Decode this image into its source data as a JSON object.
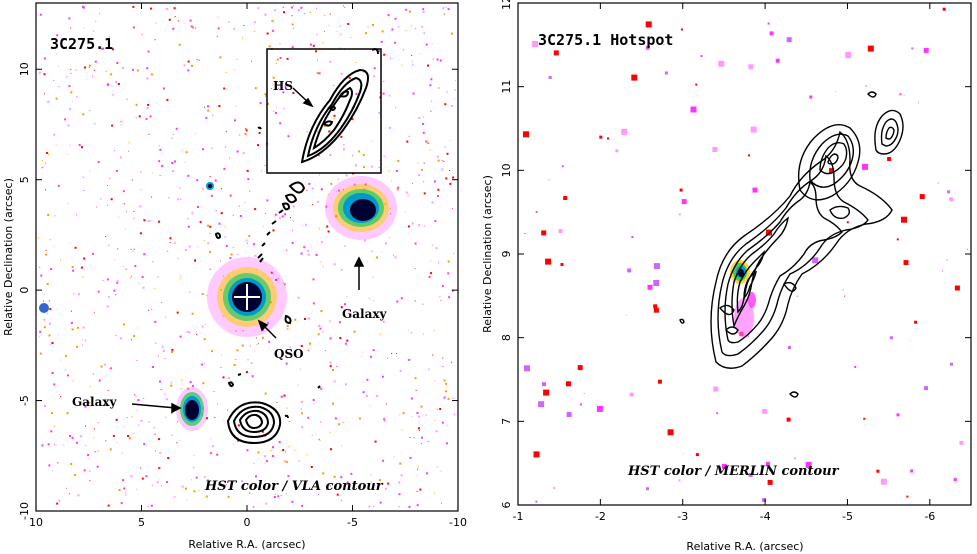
{
  "figure": {
    "left_panel": {
      "title": "3C275.1",
      "overlay_label": "HST color / VLA contour",
      "xlabel": "Relative R.A. (arcsec)",
      "ylabel": "Relative Declination (arcsec)",
      "xlim": [
        10,
        -10
      ],
      "ylim": [
        -10,
        13
      ],
      "x_ticks": [
        "10",
        "5",
        "0",
        "-5",
        "-10"
      ],
      "y_ticks": [
        "-10",
        "-5",
        "0",
        "5",
        "10"
      ],
      "annotations": {
        "hotspot": "HS",
        "galaxy_right": "Galaxy",
        "galaxy_left": "Galaxy",
        "qso": "QSO"
      }
    },
    "right_panel": {
      "title": "3C275.1 Hotspot",
      "overlay_label": "HST color / MERLIN contour",
      "xlabel": "Relative R.A. (arcsec)",
      "ylabel": "Relative Declination (arcsec)",
      "xlim": [
        -1,
        -6.5
      ],
      "ylim": [
        6,
        12
      ],
      "x_ticks": [
        "-1",
        "-2",
        "-3",
        "-4",
        "-5",
        "-6"
      ],
      "y_ticks": [
        "6",
        "7",
        "8",
        "9",
        "10",
        "11",
        "12"
      ]
    }
  },
  "colors": {
    "noise_magenta": "#ff33ff",
    "noise_red": "#ff0000",
    "noise_orange": "#ff9900",
    "source_core": "#000033",
    "source_ring_blue": "#0099cc",
    "source_ring_green": "#33cc66",
    "source_ring_yellow": "#ffcc00",
    "contour": "#000000"
  }
}
